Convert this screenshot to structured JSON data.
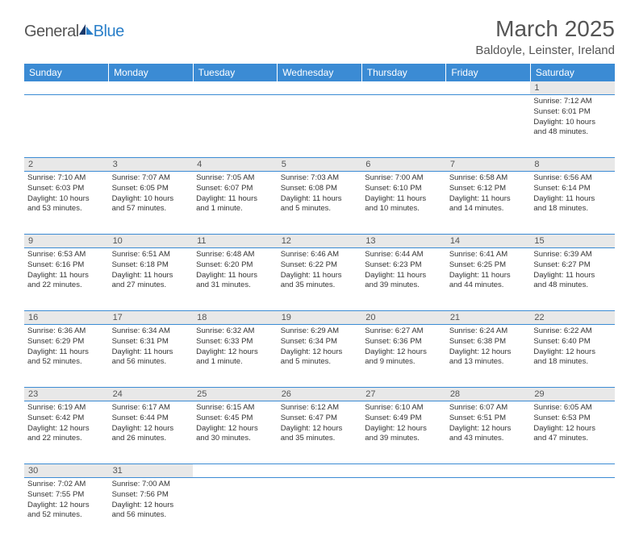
{
  "header": {
    "logo_general": "General",
    "logo_blue": "Blue",
    "title": "March 2025",
    "location": "Baldoyle, Leinster, Ireland"
  },
  "colors": {
    "header_bg": "#3b8bd4",
    "header_text": "#ffffff",
    "daynum_bg": "#e8e8e8",
    "border": "#3b8bd4",
    "text": "#333333",
    "logo_blue": "#2a7fc9",
    "logo_gray": "#555555"
  },
  "day_names": [
    "Sunday",
    "Monday",
    "Tuesday",
    "Wednesday",
    "Thursday",
    "Friday",
    "Saturday"
  ],
  "weeks": [
    [
      null,
      null,
      null,
      null,
      null,
      null,
      {
        "n": "1",
        "sunrise": "Sunrise: 7:12 AM",
        "sunset": "Sunset: 6:01 PM",
        "daylight1": "Daylight: 10 hours",
        "daylight2": "and 48 minutes."
      }
    ],
    [
      {
        "n": "2",
        "sunrise": "Sunrise: 7:10 AM",
        "sunset": "Sunset: 6:03 PM",
        "daylight1": "Daylight: 10 hours",
        "daylight2": "and 53 minutes."
      },
      {
        "n": "3",
        "sunrise": "Sunrise: 7:07 AM",
        "sunset": "Sunset: 6:05 PM",
        "daylight1": "Daylight: 10 hours",
        "daylight2": "and 57 minutes."
      },
      {
        "n": "4",
        "sunrise": "Sunrise: 7:05 AM",
        "sunset": "Sunset: 6:07 PM",
        "daylight1": "Daylight: 11 hours",
        "daylight2": "and 1 minute."
      },
      {
        "n": "5",
        "sunrise": "Sunrise: 7:03 AM",
        "sunset": "Sunset: 6:08 PM",
        "daylight1": "Daylight: 11 hours",
        "daylight2": "and 5 minutes."
      },
      {
        "n": "6",
        "sunrise": "Sunrise: 7:00 AM",
        "sunset": "Sunset: 6:10 PM",
        "daylight1": "Daylight: 11 hours",
        "daylight2": "and 10 minutes."
      },
      {
        "n": "7",
        "sunrise": "Sunrise: 6:58 AM",
        "sunset": "Sunset: 6:12 PM",
        "daylight1": "Daylight: 11 hours",
        "daylight2": "and 14 minutes."
      },
      {
        "n": "8",
        "sunrise": "Sunrise: 6:56 AM",
        "sunset": "Sunset: 6:14 PM",
        "daylight1": "Daylight: 11 hours",
        "daylight2": "and 18 minutes."
      }
    ],
    [
      {
        "n": "9",
        "sunrise": "Sunrise: 6:53 AM",
        "sunset": "Sunset: 6:16 PM",
        "daylight1": "Daylight: 11 hours",
        "daylight2": "and 22 minutes."
      },
      {
        "n": "10",
        "sunrise": "Sunrise: 6:51 AM",
        "sunset": "Sunset: 6:18 PM",
        "daylight1": "Daylight: 11 hours",
        "daylight2": "and 27 minutes."
      },
      {
        "n": "11",
        "sunrise": "Sunrise: 6:48 AM",
        "sunset": "Sunset: 6:20 PM",
        "daylight1": "Daylight: 11 hours",
        "daylight2": "and 31 minutes."
      },
      {
        "n": "12",
        "sunrise": "Sunrise: 6:46 AM",
        "sunset": "Sunset: 6:22 PM",
        "daylight1": "Daylight: 11 hours",
        "daylight2": "and 35 minutes."
      },
      {
        "n": "13",
        "sunrise": "Sunrise: 6:44 AM",
        "sunset": "Sunset: 6:23 PM",
        "daylight1": "Daylight: 11 hours",
        "daylight2": "and 39 minutes."
      },
      {
        "n": "14",
        "sunrise": "Sunrise: 6:41 AM",
        "sunset": "Sunset: 6:25 PM",
        "daylight1": "Daylight: 11 hours",
        "daylight2": "and 44 minutes."
      },
      {
        "n": "15",
        "sunrise": "Sunrise: 6:39 AM",
        "sunset": "Sunset: 6:27 PM",
        "daylight1": "Daylight: 11 hours",
        "daylight2": "and 48 minutes."
      }
    ],
    [
      {
        "n": "16",
        "sunrise": "Sunrise: 6:36 AM",
        "sunset": "Sunset: 6:29 PM",
        "daylight1": "Daylight: 11 hours",
        "daylight2": "and 52 minutes."
      },
      {
        "n": "17",
        "sunrise": "Sunrise: 6:34 AM",
        "sunset": "Sunset: 6:31 PM",
        "daylight1": "Daylight: 11 hours",
        "daylight2": "and 56 minutes."
      },
      {
        "n": "18",
        "sunrise": "Sunrise: 6:32 AM",
        "sunset": "Sunset: 6:33 PM",
        "daylight1": "Daylight: 12 hours",
        "daylight2": "and 1 minute."
      },
      {
        "n": "19",
        "sunrise": "Sunrise: 6:29 AM",
        "sunset": "Sunset: 6:34 PM",
        "daylight1": "Daylight: 12 hours",
        "daylight2": "and 5 minutes."
      },
      {
        "n": "20",
        "sunrise": "Sunrise: 6:27 AM",
        "sunset": "Sunset: 6:36 PM",
        "daylight1": "Daylight: 12 hours",
        "daylight2": "and 9 minutes."
      },
      {
        "n": "21",
        "sunrise": "Sunrise: 6:24 AM",
        "sunset": "Sunset: 6:38 PM",
        "daylight1": "Daylight: 12 hours",
        "daylight2": "and 13 minutes."
      },
      {
        "n": "22",
        "sunrise": "Sunrise: 6:22 AM",
        "sunset": "Sunset: 6:40 PM",
        "daylight1": "Daylight: 12 hours",
        "daylight2": "and 18 minutes."
      }
    ],
    [
      {
        "n": "23",
        "sunrise": "Sunrise: 6:19 AM",
        "sunset": "Sunset: 6:42 PM",
        "daylight1": "Daylight: 12 hours",
        "daylight2": "and 22 minutes."
      },
      {
        "n": "24",
        "sunrise": "Sunrise: 6:17 AM",
        "sunset": "Sunset: 6:44 PM",
        "daylight1": "Daylight: 12 hours",
        "daylight2": "and 26 minutes."
      },
      {
        "n": "25",
        "sunrise": "Sunrise: 6:15 AM",
        "sunset": "Sunset: 6:45 PM",
        "daylight1": "Daylight: 12 hours",
        "daylight2": "and 30 minutes."
      },
      {
        "n": "26",
        "sunrise": "Sunrise: 6:12 AM",
        "sunset": "Sunset: 6:47 PM",
        "daylight1": "Daylight: 12 hours",
        "daylight2": "and 35 minutes."
      },
      {
        "n": "27",
        "sunrise": "Sunrise: 6:10 AM",
        "sunset": "Sunset: 6:49 PM",
        "daylight1": "Daylight: 12 hours",
        "daylight2": "and 39 minutes."
      },
      {
        "n": "28",
        "sunrise": "Sunrise: 6:07 AM",
        "sunset": "Sunset: 6:51 PM",
        "daylight1": "Daylight: 12 hours",
        "daylight2": "and 43 minutes."
      },
      {
        "n": "29",
        "sunrise": "Sunrise: 6:05 AM",
        "sunset": "Sunset: 6:53 PM",
        "daylight1": "Daylight: 12 hours",
        "daylight2": "and 47 minutes."
      }
    ],
    [
      {
        "n": "30",
        "sunrise": "Sunrise: 7:02 AM",
        "sunset": "Sunset: 7:55 PM",
        "daylight1": "Daylight: 12 hours",
        "daylight2": "and 52 minutes."
      },
      {
        "n": "31",
        "sunrise": "Sunrise: 7:00 AM",
        "sunset": "Sunset: 7:56 PM",
        "daylight1": "Daylight: 12 hours",
        "daylight2": "and 56 minutes."
      },
      null,
      null,
      null,
      null,
      null
    ]
  ]
}
